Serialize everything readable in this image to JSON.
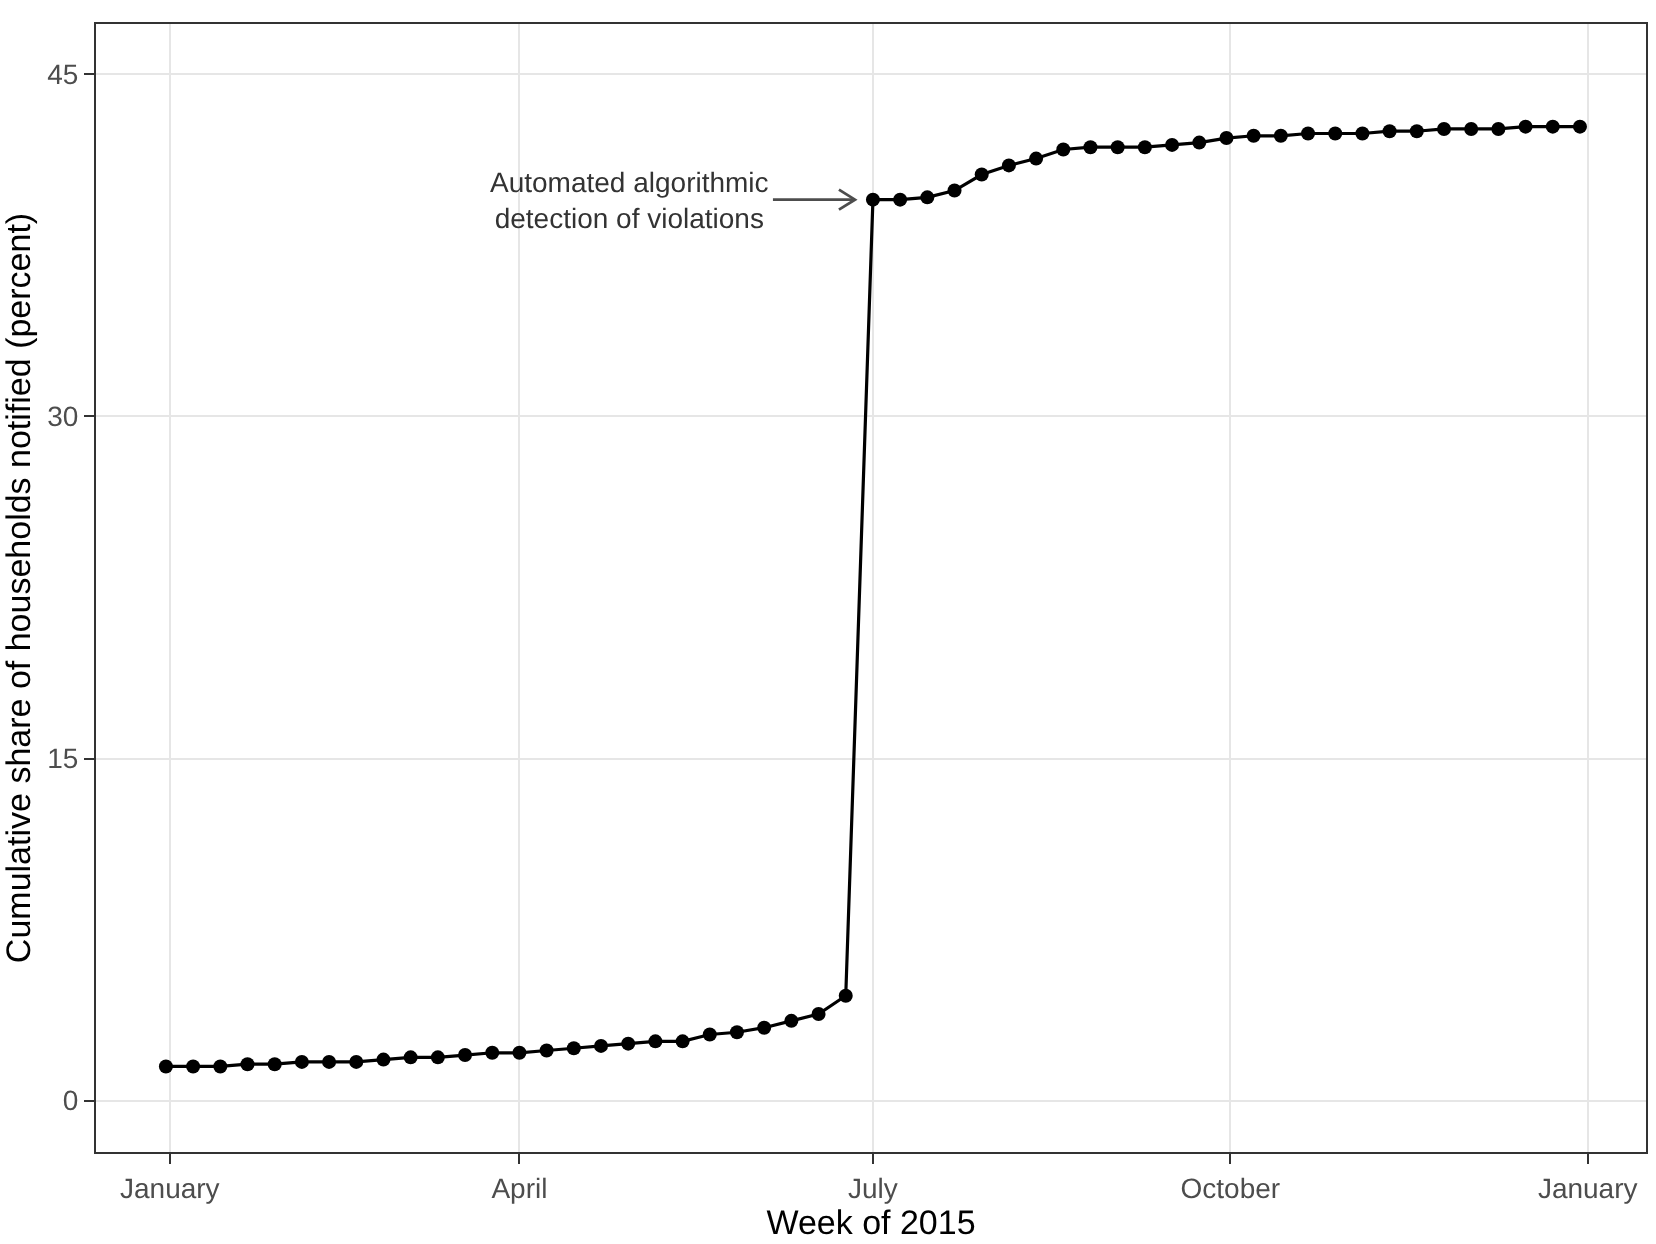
{
  "chart_data": {
    "type": "line",
    "xlabel": "Week of 2015",
    "ylabel": "Cumulative share of households notified (percent)",
    "x": [
      "2014-12-31",
      "2015-01-07",
      "2015-01-14",
      "2015-01-21",
      "2015-01-28",
      "2015-02-04",
      "2015-02-11",
      "2015-02-18",
      "2015-02-25",
      "2015-03-04",
      "2015-03-11",
      "2015-03-18",
      "2015-03-25",
      "2015-04-01",
      "2015-04-08",
      "2015-04-15",
      "2015-04-22",
      "2015-04-29",
      "2015-05-06",
      "2015-05-13",
      "2015-05-20",
      "2015-05-27",
      "2015-06-03",
      "2015-06-10",
      "2015-06-17",
      "2015-06-24",
      "2015-07-01",
      "2015-07-08",
      "2015-07-15",
      "2015-07-22",
      "2015-07-29",
      "2015-08-05",
      "2015-08-12",
      "2015-08-19",
      "2015-08-26",
      "2015-09-02",
      "2015-09-09",
      "2015-09-16",
      "2015-09-23",
      "2015-09-30",
      "2015-10-07",
      "2015-10-14",
      "2015-10-21",
      "2015-10-28",
      "2015-11-04",
      "2015-11-11",
      "2015-11-18",
      "2015-11-25",
      "2015-12-02",
      "2015-12-09",
      "2015-12-16",
      "2015-12-23",
      "2015-12-30"
    ],
    "series": [
      {
        "color": "#000000",
        "values": [
          1.5,
          1.5,
          1.5,
          1.6,
          1.6,
          1.7,
          1.7,
          1.7,
          1.8,
          1.9,
          1.9,
          2.0,
          2.1,
          2.1,
          2.2,
          2.3,
          2.4,
          2.5,
          2.6,
          2.6,
          2.9,
          3.0,
          3.2,
          3.5,
          3.8,
          4.6,
          39.5,
          39.5,
          39.6,
          39.9,
          40.6,
          41.0,
          41.3,
          41.7,
          41.8,
          41.8,
          41.8,
          41.9,
          42.0,
          42.2,
          42.3,
          42.3,
          42.4,
          42.4,
          42.4,
          42.5,
          42.5,
          42.6,
          42.6,
          42.6,
          42.7,
          42.7,
          42.7
        ]
      }
    ],
    "xlim": [
      "2014-12-13",
      "2016-01-16"
    ],
    "xticks": [
      {
        "value": "2015-01-01",
        "label": "January"
      },
      {
        "value": "2015-04-01",
        "label": "April"
      },
      {
        "value": "2015-07-01",
        "label": "July"
      },
      {
        "value": "2015-10-01",
        "label": "October"
      },
      {
        "value": "2016-01-01",
        "label": "January"
      }
    ],
    "ylim": [
      -2.25,
      47.2
    ],
    "yticks": [
      0,
      15,
      30,
      45
    ],
    "annotations": [
      {
        "text": "Automated algorithmic\ndetection of violations",
        "x": "2015-07-01",
        "y": 39.5
      }
    ],
    "grid": true,
    "marker": "circle",
    "line_style": "solid"
  }
}
